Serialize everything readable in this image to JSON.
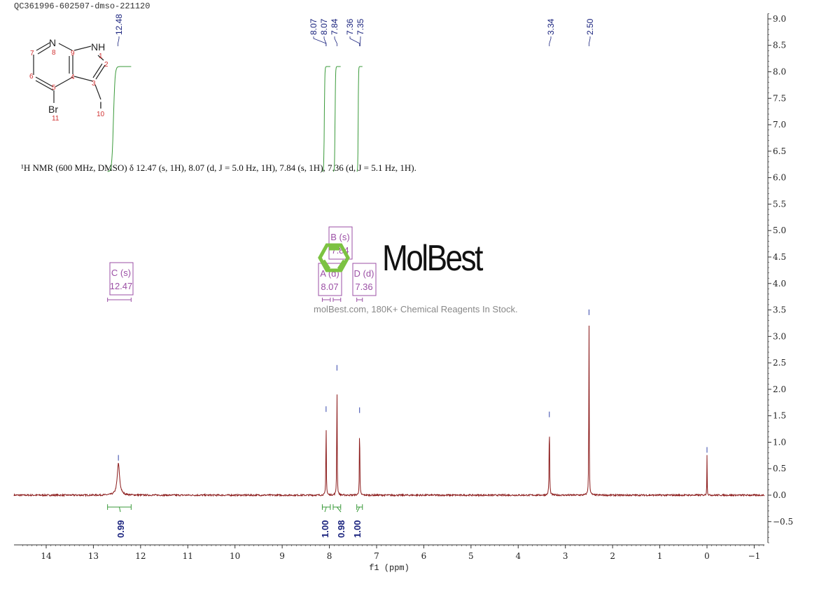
{
  "sample_id": "QC361996-602507-dmso-221120",
  "nmr_description": "¹H NMR (600 MHz, DMSO) δ 12.47 (s, 1H), 8.07 (d, J = 5.0 Hz, 1H), 7.84 (s, 1H), 7.36 (d, J = 5.1 Hz, 1H).",
  "molecule": {
    "atoms": [
      "N",
      "NH",
      "Br",
      "I"
    ],
    "numbers": [
      "1",
      "2",
      "3",
      "4",
      "5",
      "6",
      "7",
      "8",
      "9",
      "10",
      "11"
    ]
  },
  "watermark": {
    "brand": "MolBest",
    "tagline": "molBest.com, 180K+ Chemical Reagents In Stock.",
    "color": "#7cc242"
  },
  "colors": {
    "spectrum": "#8b1a1a",
    "integral": "#3a9a3a",
    "peak_label": "#1a237e",
    "multiplet": "#9b4fa5"
  },
  "chart_data": {
    "type": "line",
    "xlabel": "f1 (ppm)",
    "xlim": [
      14.7,
      -1.2
    ],
    "ylim": [
      -0.9,
      9.1
    ],
    "x_reversed": true,
    "y_axis_side": "right",
    "xticks": [
      "14",
      "13",
      "12",
      "11",
      "10",
      "9",
      "8",
      "7",
      "6",
      "5",
      "4",
      "3",
      "2",
      "1",
      "0",
      "−1"
    ],
    "xtick_values": [
      14,
      13,
      12,
      11,
      10,
      9,
      8,
      7,
      6,
      5,
      4,
      3,
      2,
      1,
      0,
      -1
    ],
    "yticks": [
      "9.0",
      "8.5",
      "8.0",
      "7.5",
      "7.0",
      "6.5",
      "6.0",
      "5.5",
      "5.0",
      "4.5",
      "4.0",
      "3.5",
      "3.0",
      "2.5",
      "2.0",
      "1.5",
      "1.0",
      "0.5",
      "0.0",
      "−0.5"
    ],
    "ytick_values": [
      9,
      8.5,
      8,
      7.5,
      7,
      6.5,
      6,
      5.5,
      5,
      4.5,
      4,
      3.5,
      3,
      2.5,
      2,
      1.5,
      1,
      0.5,
      0,
      -0.5
    ],
    "peaks": [
      {
        "ppm": 12.47,
        "height": 0.6,
        "width": 0.03
      },
      {
        "ppm": 8.07,
        "height": 1.52,
        "width": 0.005
      },
      {
        "ppm": 7.84,
        "height": 2.3,
        "width": 0.005
      },
      {
        "ppm": 7.36,
        "height": 1.5,
        "width": 0.005
      },
      {
        "ppm": 3.34,
        "height": 1.42,
        "width": 0.006
      },
      {
        "ppm": 2.5,
        "height": 3.35,
        "width": 0.005
      },
      {
        "ppm": 0.0,
        "height": 0.75,
        "width": 0.004
      }
    ],
    "peak_labels": [
      "12.48",
      "8.07",
      "8.07",
      "7.84",
      "7.36",
      "7.35",
      "3.34",
      "2.50"
    ],
    "peak_label_ppm": [
      12.48,
      8.07,
      8.07,
      7.84,
      7.36,
      7.35,
      3.34,
      2.5
    ],
    "multiplets": [
      {
        "name": "C (s)",
        "shift": "12.47",
        "range": [
          12.7,
          12.2
        ]
      },
      {
        "name": "A (d)",
        "shift": "8.07",
        "range": [
          8.15,
          7.98
        ]
      },
      {
        "name": "B (s)",
        "shift": "7.84",
        "range": [
          7.92,
          7.76
        ]
      },
      {
        "name": "D (d)",
        "shift": "7.36",
        "range": [
          7.42,
          7.3
        ]
      }
    ],
    "integrals": [
      {
        "value": "0.99",
        "range": [
          12.7,
          12.2
        ]
      },
      {
        "value": "1.00",
        "range": [
          8.15,
          7.98
        ]
      },
      {
        "value": "0.98",
        "range": [
          7.92,
          7.76
        ]
      },
      {
        "value": "1.00",
        "range": [
          7.42,
          7.3
        ]
      }
    ]
  }
}
